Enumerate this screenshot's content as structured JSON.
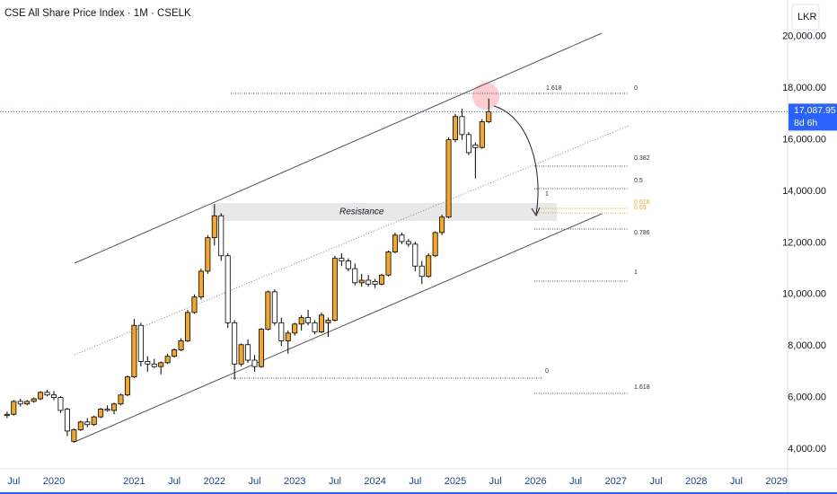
{
  "chart_data": {
    "type": "candlestick",
    "title": "CSE All Share Price Index · 1M · CSELK",
    "currency": "LKR",
    "price_label": "17,087.95",
    "countdown": "8d 6h",
    "annotation": "Resistance",
    "fib_labels": [
      "1.618",
      "0",
      "0.382",
      "0.5",
      "1",
      "0.618",
      "0.65",
      "0.786",
      "1",
      "0",
      "1.618"
    ],
    "x": [
      "2019-06",
      "2019-07",
      "2019-08",
      "2019-09",
      "2019-10",
      "2019-11",
      "2019-12",
      "2020-01",
      "2020-02",
      "2020-03",
      "2020-04",
      "2020-05",
      "2020-06",
      "2020-07",
      "2020-08",
      "2020-09",
      "2020-10",
      "2020-11",
      "2020-12",
      "2021-01",
      "2021-02",
      "2021-03",
      "2021-04",
      "2021-05",
      "2021-06",
      "2021-07",
      "2021-08",
      "2021-09",
      "2021-10",
      "2021-11",
      "2021-12",
      "2022-01",
      "2022-02",
      "2022-03",
      "2022-04",
      "2022-05",
      "2022-06",
      "2022-07",
      "2022-08",
      "2022-09",
      "2022-10",
      "2022-11",
      "2022-12",
      "2023-01",
      "2023-02",
      "2023-03",
      "2023-04",
      "2023-05",
      "2023-06",
      "2023-07",
      "2023-08",
      "2023-09",
      "2023-10",
      "2023-11",
      "2023-12",
      "2024-01",
      "2024-02",
      "2024-03",
      "2024-04",
      "2024-05",
      "2024-06",
      "2024-07",
      "2024-08",
      "2024-09",
      "2024-10",
      "2024-11",
      "2024-12",
      "2025-01",
      "2025-02",
      "2025-03",
      "2025-04",
      "2025-05",
      "2025-06"
    ],
    "open": [
      5300,
      5350,
      5850,
      5750,
      5850,
      5950,
      6200,
      6100,
      6000,
      5550,
      4300,
      4750,
      5050,
      4950,
      5250,
      5550,
      5500,
      5750,
      6100,
      6800,
      8800,
      7400,
      7300,
      7200,
      7350,
      7600,
      7850,
      8200,
      9300,
      9900,
      10900,
      12200,
      13050,
      11500,
      8900,
      7300,
      8050,
      7450,
      7200,
      8650,
      10100,
      8900,
      8200,
      8500,
      8850,
      9100,
      8900,
      8550,
      8900,
      9000,
      11400,
      11300,
      11000,
      10450,
      10550,
      10500,
      10400,
      10750,
      11650,
      12300,
      12050,
      11950,
      11100,
      10700,
      11500,
      12400,
      13000,
      16000,
      16900,
      16200,
      15800,
      15700,
      16700
    ],
    "high": [
      5450,
      5900,
      5950,
      5900,
      6000,
      6250,
      6300,
      6250,
      6050,
      5600,
      4800,
      5100,
      5200,
      5300,
      5600,
      5700,
      5800,
      6150,
      6850,
      9050,
      8900,
      7600,
      7500,
      7400,
      7700,
      7900,
      8300,
      9400,
      10000,
      11000,
      12300,
      13500,
      13150,
      11600,
      9000,
      8100,
      8250,
      7650,
      8700,
      10150,
      10200,
      9100,
      8600,
      8900,
      9200,
      9400,
      9000,
      9300,
      9100,
      11500,
      11600,
      11400,
      11200,
      10800,
      10750,
      10600,
      10800,
      11700,
      12400,
      12400,
      12150,
      12050,
      11300,
      11600,
      12450,
      13100,
      16100,
      17000,
      17200,
      16300,
      15900,
      16800,
      17600
    ],
    "low": [
      5200,
      5300,
      5650,
      5700,
      5800,
      5900,
      6050,
      5900,
      5400,
      4500,
      4250,
      4700,
      4850,
      4900,
      5200,
      5450,
      5350,
      5700,
      6050,
      6750,
      7200,
      7000,
      7150,
      6900,
      7300,
      7550,
      7800,
      8150,
      9250,
      9800,
      10800,
      11900,
      11300,
      8700,
      6700,
      7200,
      7350,
      7000,
      7150,
      8600,
      8800,
      8000,
      7700,
      8400,
      8600,
      8800,
      8450,
      8500,
      8350,
      8950,
      11100,
      10900,
      10350,
      10300,
      10300,
      10250,
      10350,
      10700,
      11600,
      11950,
      11850,
      10900,
      10400,
      10650,
      11450,
      12300,
      12950,
      15900,
      16000,
      15400,
      14500,
      15650,
      16650
    ],
    "close": [
      5350,
      5850,
      5750,
      5850,
      5950,
      6200,
      6100,
      6000,
      5500,
      4700,
      4750,
      5050,
      4950,
      5250,
      5550,
      5500,
      5750,
      6100,
      6800,
      8800,
      7400,
      7300,
      7200,
      7350,
      7600,
      7850,
      8200,
      9300,
      9900,
      10900,
      12200,
      13050,
      11500,
      8900,
      7300,
      8050,
      7450,
      7200,
      8650,
      10100,
      8900,
      8200,
      8500,
      8850,
      9100,
      8900,
      8550,
      9200,
      9000,
      11400,
      11300,
      11000,
      10450,
      10550,
      10400,
      10400,
      10750,
      11650,
      12300,
      12050,
      11950,
      11100,
      10700,
      11500,
      12400,
      13000,
      16000,
      16900,
      16200,
      15500,
      15700,
      16700,
      17087.95
    ],
    "up_color": "#f5a623",
    "down_color": "#ffffff",
    "ylim": [
      3233,
      21422
    ],
    "yticks": [
      {
        "value": 4000,
        "label": "4,000.00"
      },
      {
        "value": 6000,
        "label": "6,000.00"
      },
      {
        "value": 8000,
        "label": "8,000.00"
      },
      {
        "value": 10000,
        "label": "10,000.00"
      },
      {
        "value": 12000,
        "label": "12,000.00"
      },
      {
        "value": 14000,
        "label": "14,000.00"
      },
      {
        "value": 16000,
        "label": "16,000.00"
      },
      {
        "value": 18000,
        "label": "18,000.00"
      },
      {
        "value": 20000,
        "label": "20,000.00"
      }
    ],
    "xticks": [
      {
        "value": "2019-07",
        "label": "Jul"
      },
      {
        "value": "2020-01",
        "label": "2020"
      },
      {
        "value": "2021-01",
        "label": "2021"
      },
      {
        "value": "2021-07",
        "label": "Jul"
      },
      {
        "value": "2022-01",
        "label": "2022"
      },
      {
        "value": "2022-07",
        "label": "Jul"
      },
      {
        "value": "2023-01",
        "label": "2023"
      },
      {
        "value": "2023-07",
        "label": "Jul"
      },
      {
        "value": "2024-01",
        "label": "2024"
      },
      {
        "value": "2024-07",
        "label": "Jul"
      },
      {
        "value": "2025-01",
        "label": "2025"
      },
      {
        "value": "2025-07",
        "label": "Jul"
      },
      {
        "value": "2026-01",
        "label": "2026"
      },
      {
        "value": "2026-07",
        "label": "Jul"
      },
      {
        "value": "2027-01",
        "label": "2027"
      },
      {
        "value": "2027-07",
        "label": "Jul"
      },
      {
        "value": "2028-01",
        "label": "2028"
      },
      {
        "value": "2028-07",
        "label": "Jul"
      },
      {
        "value": "2029-01",
        "label": "2029"
      }
    ],
    "grid": false
  }
}
